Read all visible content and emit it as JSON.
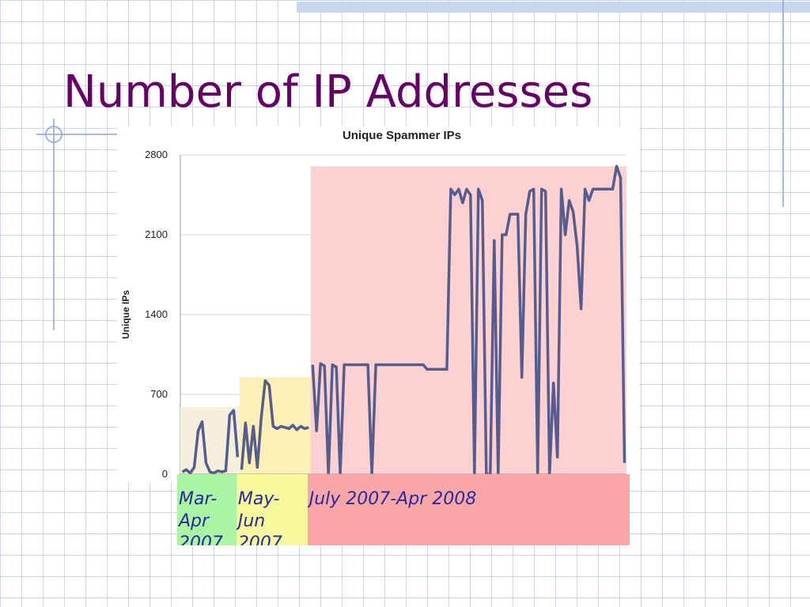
{
  "header": {
    "title": "Number of IP Addresses"
  },
  "chart_data": {
    "type": "line",
    "title": "Unique Spammer IPs",
    "y_label": "Unique IPs",
    "ylim": [
      0,
      2800
    ],
    "yticks": [
      0,
      700,
      1400,
      2100,
      2800
    ],
    "grid": true,
    "line_color": "#555d8e",
    "series": [
      {
        "name": "Mar-Apr 2007",
        "color": "#a9f5a3",
        "shade_color": "#f6efdc",
        "band_top": 590,
        "values": [
          20,
          40,
          10,
          60,
          380,
          460,
          100,
          20,
          10,
          30,
          20,
          30,
          520,
          560,
          150
        ]
      },
      {
        "name": "May-Jun 2007",
        "color": "#f7f79c",
        "shade_color": "#fcf0b6",
        "band_top": 850,
        "values": [
          40,
          450,
          100,
          420,
          60,
          500,
          820,
          780,
          420,
          400,
          420,
          410,
          400,
          430,
          390,
          420,
          400,
          410
        ]
      },
      {
        "name": "July 2007-Apr 2008",
        "color": "#f9a6a9",
        "shade_color": "#fdd0d1",
        "band_top": 2700,
        "values": [
          960,
          380,
          970,
          950,
          0,
          960,
          940,
          0,
          960,
          960,
          960,
          960,
          960,
          960,
          960,
          0,
          960,
          960,
          960,
          960,
          960,
          960,
          960,
          960,
          960,
          960,
          960,
          960,
          960,
          920,
          920,
          920,
          920,
          920,
          920,
          2500,
          2450,
          2500,
          2380,
          2500,
          2450,
          0,
          2500,
          2400,
          0,
          0,
          2050,
          0,
          2100,
          2100,
          2280,
          2280,
          2280,
          850,
          2280,
          2480,
          2500,
          0,
          2500,
          2480,
          0,
          800,
          150,
          2500,
          2100,
          2400,
          2300,
          2000,
          1450,
          2500,
          2400,
          2500,
          2500,
          2500,
          2500,
          2500,
          2500,
          2700,
          2600,
          100
        ]
      }
    ]
  }
}
